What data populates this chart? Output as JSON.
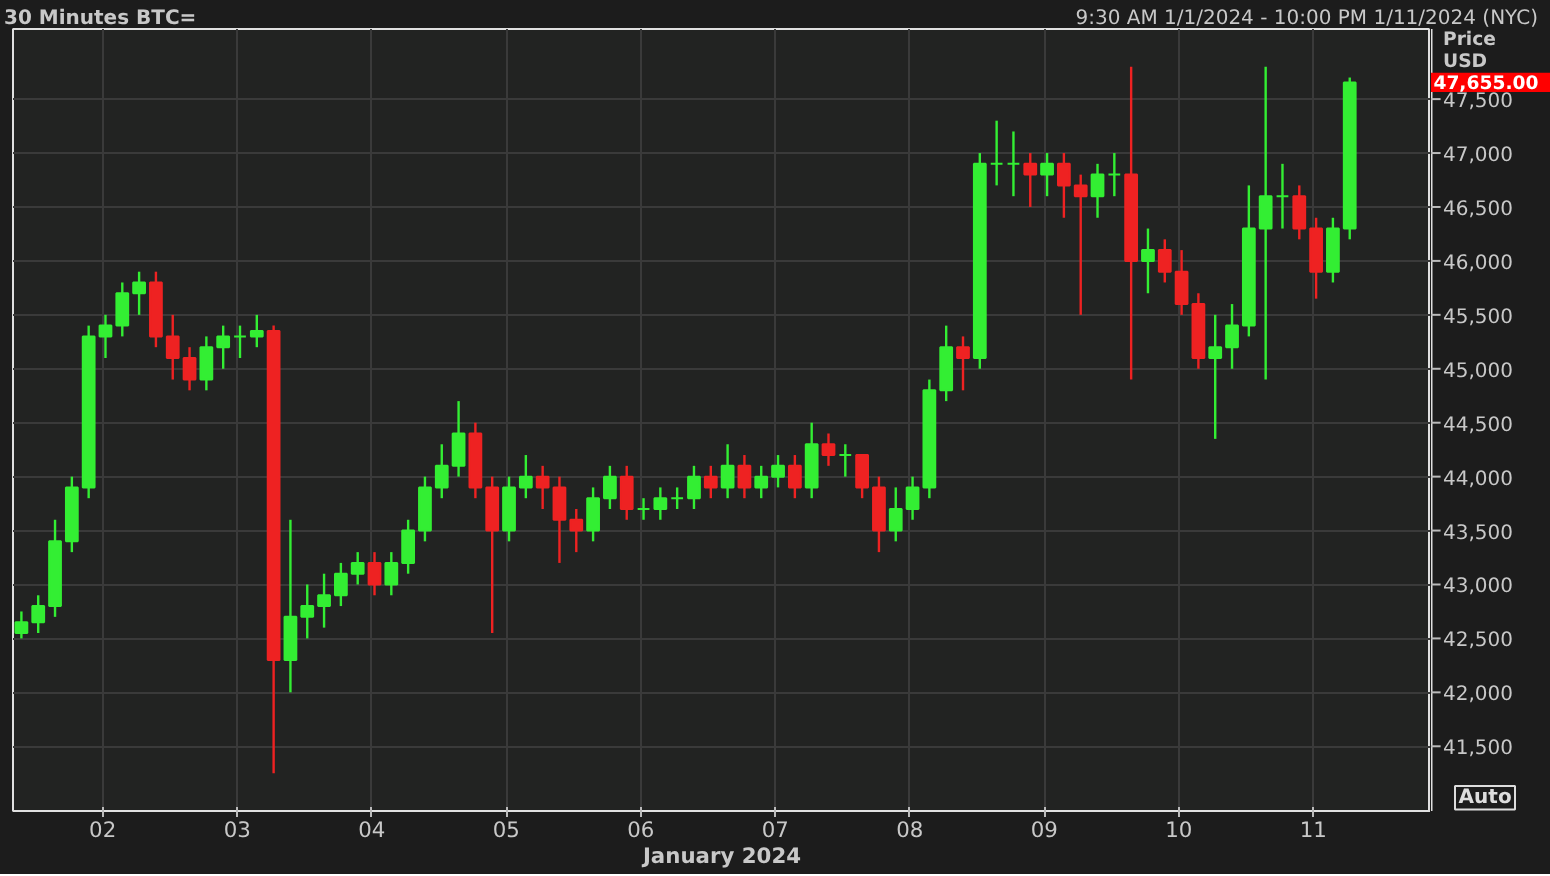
{
  "chart_data": {
    "type": "candlestick",
    "title": "30 Minutes BTC=",
    "subtitle": "9:30 AM 1/1/2024 - 10:00 PM 1/11/2024 (NYC)",
    "xlabel": "January 2024",
    "ylabel": "Price USD",
    "annotations": [
      "Auto",
      "47,655.00"
    ],
    "x": [
      "2024-01-01T09:30",
      "2024-01-01T12:30",
      "2024-01-01T15:30",
      "2024-01-01T18:30",
      "2024-01-01T21:30",
      "2024-01-02T00:30",
      "2024-01-02T03:30",
      "2024-01-02T06:30",
      "2024-01-02T09:30",
      "2024-01-02T12:30",
      "2024-01-02T15:30",
      "2024-01-02T18:30",
      "2024-01-02T21:30",
      "2024-01-03T00:30",
      "2024-01-03T03:30",
      "2024-01-03T06:30",
      "2024-01-03T09:30",
      "2024-01-03T12:30",
      "2024-01-03T15:30",
      "2024-01-03T18:30",
      "2024-01-03T21:30",
      "2024-01-04T00:30",
      "2024-01-04T03:30",
      "2024-01-04T06:30",
      "2024-01-04T09:30",
      "2024-01-04T12:30",
      "2024-01-04T15:30",
      "2024-01-04T18:30",
      "2024-01-04T21:30",
      "2024-01-05T00:30",
      "2024-01-05T03:30",
      "2024-01-05T06:30",
      "2024-01-05T09:30",
      "2024-01-05T12:30",
      "2024-01-05T15:30",
      "2024-01-05T18:30",
      "2024-01-05T21:30",
      "2024-01-06T00:30",
      "2024-01-06T03:30",
      "2024-01-06T06:30",
      "2024-01-06T09:30",
      "2024-01-06T12:30",
      "2024-01-06T15:30",
      "2024-01-06T18:30",
      "2024-01-06T21:30",
      "2024-01-07T00:30",
      "2024-01-07T03:30",
      "2024-01-07T06:30",
      "2024-01-07T09:30",
      "2024-01-07T12:30",
      "2024-01-07T15:30",
      "2024-01-07T18:30",
      "2024-01-07T21:30",
      "2024-01-08T00:30",
      "2024-01-08T03:30",
      "2024-01-08T06:30",
      "2024-01-08T09:30",
      "2024-01-08T12:30",
      "2024-01-08T15:30",
      "2024-01-08T18:30",
      "2024-01-08T21:30",
      "2024-01-09T00:30",
      "2024-01-09T03:30",
      "2024-01-09T06:30",
      "2024-01-09T09:30",
      "2024-01-09T12:30",
      "2024-01-09T15:30",
      "2024-01-09T18:30",
      "2024-01-09T21:30",
      "2024-01-10T00:30",
      "2024-01-10T03:30",
      "2024-01-10T06:30",
      "2024-01-10T09:30",
      "2024-01-10T12:30",
      "2024-01-10T15:30",
      "2024-01-10T18:30",
      "2024-01-10T21:30",
      "2024-01-11T00:30",
      "2024-01-11T03:30",
      "2024-01-11T06:30"
    ],
    "ohlc": [
      [
        42550,
        42750,
        42500,
        42650
      ],
      [
        42650,
        42900,
        42550,
        42800
      ],
      [
        42800,
        43600,
        42700,
        43400
      ],
      [
        43400,
        44000,
        43300,
        43900
      ],
      [
        43900,
        45400,
        43800,
        45300
      ],
      [
        45300,
        45500,
        45100,
        45400
      ],
      [
        45400,
        45800,
        45300,
        45700
      ],
      [
        45700,
        45900,
        45500,
        45800
      ],
      [
        45800,
        45900,
        45200,
        45300
      ],
      [
        45300,
        45500,
        44900,
        45100
      ],
      [
        45100,
        45200,
        44800,
        44900
      ],
      [
        44900,
        45300,
        44800,
        45200
      ],
      [
        45200,
        45400,
        45000,
        45300
      ],
      [
        45300,
        45400,
        45100,
        45300
      ],
      [
        45300,
        45500,
        45200,
        45350
      ],
      [
        45350,
        45400,
        41250,
        42300
      ],
      [
        42300,
        43600,
        42000,
        42700
      ],
      [
        42700,
        43000,
        42500,
        42800
      ],
      [
        42800,
        43100,
        42600,
        42900
      ],
      [
        42900,
        43200,
        42800,
        43100
      ],
      [
        43100,
        43300,
        43000,
        43200
      ],
      [
        43200,
        43300,
        42900,
        43000
      ],
      [
        43000,
        43300,
        42900,
        43200
      ],
      [
        43200,
        43600,
        43100,
        43500
      ],
      [
        43500,
        44000,
        43400,
        43900
      ],
      [
        43900,
        44300,
        43800,
        44100
      ],
      [
        44100,
        44700,
        44000,
        44400
      ],
      [
        44400,
        44500,
        43800,
        43900
      ],
      [
        43900,
        44000,
        42550,
        43500
      ],
      [
        43500,
        44000,
        43400,
        43900
      ],
      [
        43900,
        44200,
        43800,
        44000
      ],
      [
        44000,
        44100,
        43700,
        43900
      ],
      [
        43900,
        44000,
        43200,
        43600
      ],
      [
        43600,
        43700,
        43300,
        43500
      ],
      [
        43500,
        43900,
        43400,
        43800
      ],
      [
        43800,
        44100,
        43700,
        44000
      ],
      [
        44000,
        44100,
        43600,
        43700
      ],
      [
        43700,
        43800,
        43600,
        43700
      ],
      [
        43700,
        43900,
        43600,
        43800
      ],
      [
        43800,
        43900,
        43700,
        43800
      ],
      [
        43800,
        44100,
        43700,
        44000
      ],
      [
        44000,
        44100,
        43800,
        43900
      ],
      [
        43900,
        44300,
        43800,
        44100
      ],
      [
        44100,
        44200,
        43800,
        43900
      ],
      [
        43900,
        44100,
        43800,
        44000
      ],
      [
        44000,
        44200,
        43900,
        44100
      ],
      [
        44100,
        44200,
        43800,
        43900
      ],
      [
        43900,
        44500,
        43800,
        44300
      ],
      [
        44300,
        44400,
        44100,
        44200
      ],
      [
        44200,
        44300,
        44000,
        44200
      ],
      [
        44200,
        44200,
        43800,
        43900
      ],
      [
        43900,
        44000,
        43300,
        43500
      ],
      [
        43500,
        43900,
        43400,
        43700
      ],
      [
        43700,
        44000,
        43600,
        43900
      ],
      [
        43900,
        44900,
        43800,
        44800
      ],
      [
        44800,
        45400,
        44700,
        45200
      ],
      [
        45200,
        45300,
        44800,
        45100
      ],
      [
        45100,
        47000,
        45000,
        46900
      ],
      [
        46900,
        47300,
        46700,
        46900
      ],
      [
        46900,
        47200,
        46600,
        46900
      ],
      [
        46900,
        47000,
        46500,
        46800
      ],
      [
        46800,
        47000,
        46600,
        46900
      ],
      [
        46900,
        47000,
        46400,
        46700
      ],
      [
        46700,
        46800,
        45500,
        46600
      ],
      [
        46600,
        46900,
        46400,
        46800
      ],
      [
        46800,
        47000,
        46600,
        46800
      ],
      [
        46800,
        47800,
        44900,
        46000
      ],
      [
        46000,
        46300,
        45700,
        46100
      ],
      [
        46100,
        46200,
        45800,
        45900
      ],
      [
        45900,
        46100,
        45500,
        45600
      ],
      [
        45600,
        45700,
        45000,
        45100
      ],
      [
        45100,
        45500,
        44350,
        45200
      ],
      [
        45200,
        45600,
        45000,
        45400
      ],
      [
        45400,
        46700,
        45300,
        46300
      ],
      [
        46300,
        47800,
        44900,
        46600
      ],
      [
        46600,
        46900,
        46300,
        46600
      ],
      [
        46600,
        46700,
        46200,
        46300
      ],
      [
        46300,
        46400,
        45650,
        45900
      ],
      [
        45900,
        46400,
        45800,
        46300
      ],
      [
        46300,
        47700,
        46200,
        47655
      ]
    ],
    "colors": [
      "#33ee33",
      "#33ee33",
      "#33ee33",
      "#33ee33",
      "#33ee33",
      "#33ee33",
      "#33ee33",
      "#33ee33",
      "#ee2222",
      "#ee2222",
      "#ee2222",
      "#33ee33",
      "#33ee33",
      "#33ee33",
      "#33ee33",
      "#ee2222",
      "#33ee33",
      "#33ee33",
      "#33ee33",
      "#33ee33",
      "#33ee33",
      "#ee2222",
      "#33ee33",
      "#33ee33",
      "#33ee33",
      "#33ee33",
      "#33ee33",
      "#ee2222",
      "#ee2222",
      "#33ee33",
      "#33ee33",
      "#ee2222",
      "#ee2222",
      "#ee2222",
      "#33ee33",
      "#33ee33",
      "#ee2222",
      "#33ee33",
      "#33ee33",
      "#33ee33",
      "#33ee33",
      "#ee2222",
      "#33ee33",
      "#ee2222",
      "#33ee33",
      "#33ee33",
      "#ee2222",
      "#33ee33",
      "#ee2222",
      "#33ee33",
      "#ee2222",
      "#ee2222",
      "#33ee33",
      "#33ee33",
      "#33ee33",
      "#33ee33",
      "#ee2222",
      "#33ee33",
      "#33ee33",
      "#33ee33",
      "#ee2222",
      "#33ee33",
      "#ee2222",
      "#ee2222",
      "#33ee33",
      "#33ee33",
      "#ee2222",
      "#33ee33",
      "#ee2222",
      "#ee2222",
      "#ee2222",
      "#33ee33",
      "#33ee33",
      "#33ee33",
      "#33ee33",
      "#33ee33",
      "#ee2222",
      "#ee2222",
      "#33ee33",
      "#33ee33"
    ],
    "xlim": [
      "2024-01-01T08:00",
      "2024-01-11T21:00"
    ],
    "ylim": [
      40900,
      48150
    ],
    "xticks": [
      {
        "value": "2024-01-02",
        "label": "02"
      },
      {
        "value": "2024-01-03",
        "label": "03"
      },
      {
        "value": "2024-01-04",
        "label": "04"
      },
      {
        "value": "2024-01-05",
        "label": "05"
      },
      {
        "value": "2024-01-06",
        "label": "06"
      },
      {
        "value": "2024-01-07",
        "label": "07"
      },
      {
        "value": "2024-01-08",
        "label": "08"
      },
      {
        "value": "2024-01-09",
        "label": "09"
      },
      {
        "value": "2024-01-10",
        "label": "10"
      },
      {
        "value": "2024-01-11",
        "label": "11"
      }
    ],
    "yticks": [
      {
        "value": 41500,
        "label": "41,500"
      },
      {
        "value": 42000,
        "label": "42,000"
      },
      {
        "value": 42500,
        "label": "42,500"
      },
      {
        "value": 43000,
        "label": "43,000"
      },
      {
        "value": 43500,
        "label": "43,500"
      },
      {
        "value": 44000,
        "label": "44,000"
      },
      {
        "value": 44500,
        "label": "44,500"
      },
      {
        "value": 45000,
        "label": "45,000"
      },
      {
        "value": 45500,
        "label": "45,500"
      },
      {
        "value": 46000,
        "label": "46,000"
      },
      {
        "value": 46500,
        "label": "46,500"
      },
      {
        "value": 47000,
        "label": "47,000"
      },
      {
        "value": 47500,
        "label": "47,500"
      }
    ],
    "grid": true
  }
}
